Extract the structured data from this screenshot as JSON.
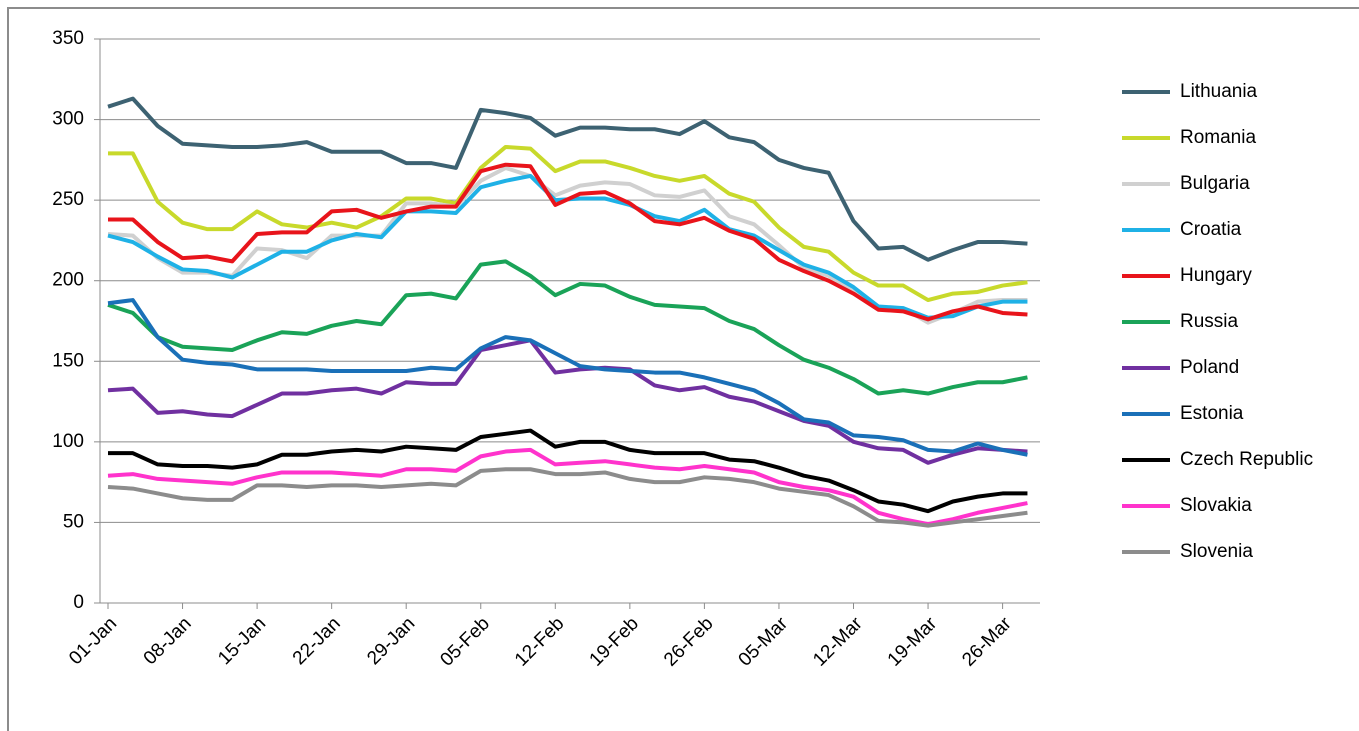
{
  "chart_data": {
    "type": "line",
    "categories": [
      "01-Jan",
      null,
      null,
      "08-Jan",
      null,
      null,
      "15-Jan",
      null,
      null,
      "22-Jan",
      null,
      null,
      "29-Jan",
      null,
      null,
      "05-Feb",
      null,
      null,
      "12-Feb",
      null,
      null,
      "19-Feb",
      null,
      null,
      "26-Feb",
      null,
      null,
      "05-Mar",
      null,
      null,
      "12-Mar",
      null,
      null,
      "19-Mar",
      null,
      null,
      "26-Mar",
      null
    ],
    "ylim": [
      0,
      350
    ],
    "yticks": [
      0,
      50,
      100,
      150,
      200,
      250,
      300,
      350
    ],
    "grid": true,
    "legend": "right",
    "series": [
      {
        "name": "Lithuania",
        "color": "#3d6272",
        "values": [
          308,
          313,
          296,
          285,
          284,
          283,
          283,
          284,
          286,
          280,
          280,
          280,
          273,
          273,
          270,
          306,
          304,
          301,
          290,
          295,
          295,
          294,
          294,
          291,
          299,
          289,
          286,
          275,
          270,
          267,
          237,
          220,
          221,
          213,
          219,
          224,
          224,
          223
        ]
      },
      {
        "name": "Romania",
        "color": "#c8d92b",
        "values": [
          279,
          279,
          249,
          236,
          232,
          232,
          243,
          235,
          233,
          236,
          233,
          240,
          251,
          251,
          248,
          270,
          283,
          282,
          268,
          274,
          274,
          270,
          265,
          262,
          265,
          254,
          249,
          233,
          221,
          218,
          205,
          197,
          197,
          188,
          192,
          193,
          197,
          199
        ]
      },
      {
        "name": "Bulgaria",
        "color": "#d0d0d0",
        "values": [
          229,
          228,
          214,
          205,
          205,
          203,
          220,
          219,
          214,
          228,
          228,
          228,
          248,
          248,
          246,
          262,
          270,
          265,
          253,
          259,
          261,
          260,
          253,
          252,
          256,
          240,
          235,
          222,
          208,
          203,
          193,
          183,
          183,
          174,
          180,
          187,
          188,
          188
        ]
      },
      {
        "name": "Croatia",
        "color": "#1fb1e6",
        "values": [
          228,
          224,
          215,
          207,
          206,
          202,
          210,
          218,
          218,
          225,
          229,
          227,
          243,
          243,
          242,
          258,
          262,
          265,
          250,
          251,
          251,
          247,
          240,
          237,
          244,
          232,
          228,
          219,
          210,
          205,
          196,
          184,
          183,
          177,
          178,
          184,
          187,
          187
        ]
      },
      {
        "name": "Hungary",
        "color": "#e8141b",
        "values": [
          238,
          238,
          224,
          214,
          215,
          212,
          229,
          230,
          230,
          243,
          244,
          239,
          243,
          246,
          246,
          268,
          272,
          271,
          247,
          254,
          255,
          248,
          237,
          235,
          239,
          231,
          226,
          213,
          206,
          200,
          192,
          182,
          181,
          176,
          181,
          184,
          180,
          179
        ]
      },
      {
        "name": "Russia",
        "color": "#1aa358",
        "values": [
          185,
          180,
          165,
          159,
          158,
          157,
          163,
          168,
          167,
          172,
          175,
          173,
          191,
          192,
          189,
          210,
          212,
          203,
          191,
          198,
          197,
          190,
          185,
          184,
          183,
          175,
          170,
          160,
          151,
          146,
          139,
          130,
          132,
          130,
          134,
          137,
          137,
          140
        ]
      },
      {
        "name": "Poland",
        "color": "#7030a0",
        "values": [
          132,
          133,
          118,
          119,
          117,
          116,
          123,
          130,
          130,
          132,
          133,
          130,
          137,
          136,
          136,
          157,
          160,
          163,
          143,
          145,
          146,
          145,
          135,
          132,
          134,
          128,
          125,
          119,
          113,
          110,
          100,
          96,
          95,
          87,
          92,
          96,
          95,
          94
        ]
      },
      {
        "name": "Estonia",
        "color": "#1a70b8",
        "values": [
          186,
          188,
          165,
          151,
          149,
          148,
          145,
          145,
          145,
          144,
          144,
          144,
          144,
          146,
          145,
          158,
          165,
          163,
          155,
          147,
          145,
          144,
          143,
          143,
          140,
          136,
          132,
          124,
          114,
          112,
          104,
          103,
          101,
          95,
          94,
          99,
          95,
          92
        ]
      },
      {
        "name": "Czech Republic",
        "color": "#000000",
        "values": [
          93,
          93,
          86,
          85,
          85,
          84,
          86,
          92,
          92,
          94,
          95,
          94,
          97,
          96,
          95,
          103,
          105,
          107,
          97,
          100,
          100,
          95,
          93,
          93,
          93,
          89,
          88,
          84,
          79,
          76,
          70,
          63,
          61,
          57,
          63,
          66,
          68,
          68
        ]
      },
      {
        "name": "Slovakia",
        "color": "#ff33cc",
        "values": [
          79,
          80,
          77,
          76,
          75,
          74,
          78,
          81,
          81,
          81,
          80,
          79,
          83,
          83,
          82,
          91,
          94,
          95,
          86,
          87,
          88,
          86,
          84,
          83,
          85,
          83,
          81,
          75,
          72,
          70,
          66,
          56,
          52,
          49,
          52,
          56,
          59,
          62
        ]
      },
      {
        "name": "Slovenia",
        "color": "#8c8c8c",
        "values": [
          72,
          71,
          68,
          65,
          64,
          64,
          73,
          73,
          72,
          73,
          73,
          72,
          73,
          74,
          73,
          82,
          83,
          83,
          80,
          80,
          81,
          77,
          75,
          75,
          78,
          77,
          75,
          71,
          69,
          67,
          60,
          51,
          50,
          48,
          50,
          52,
          54,
          56
        ]
      }
    ]
  }
}
